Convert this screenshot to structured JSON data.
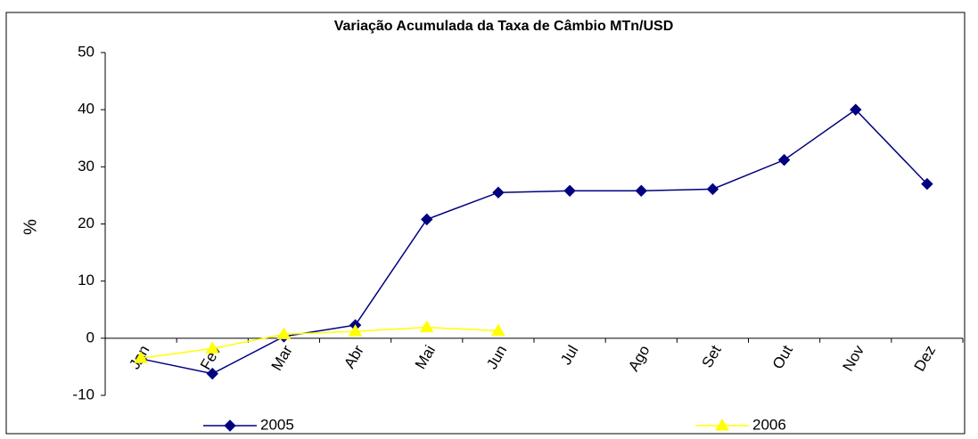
{
  "chart_data": {
    "type": "line",
    "title": "Variação Acumulada da Taxa de Câmbio MTn/USD",
    "y_label": "%",
    "categories": [
      "Jan",
      "Fev",
      "Mar",
      "Abr",
      "Mai",
      "Jun",
      "Jul",
      "Ago",
      "Set",
      "Out",
      "Nov",
      "Dez"
    ],
    "series": [
      {
        "name": "2005",
        "color": "#000080",
        "marker": "diamond",
        "values": [
          -3.6,
          -6.2,
          0.3,
          2.3,
          20.8,
          25.5,
          25.8,
          25.8,
          26.1,
          31.2,
          40,
          27
        ]
      },
      {
        "name": "2006",
        "color": "#ffff00",
        "marker": "triangle",
        "values": [
          -3.5,
          -1.8,
          0.7,
          1.2,
          1.9,
          1.3,
          null,
          null,
          null,
          null,
          null,
          null
        ]
      }
    ],
    "ylim": [
      -10,
      50
    ],
    "yticks": [
      -10,
      0,
      10,
      20,
      30,
      40,
      50
    ],
    "grid": false,
    "legend": "bottom"
  }
}
